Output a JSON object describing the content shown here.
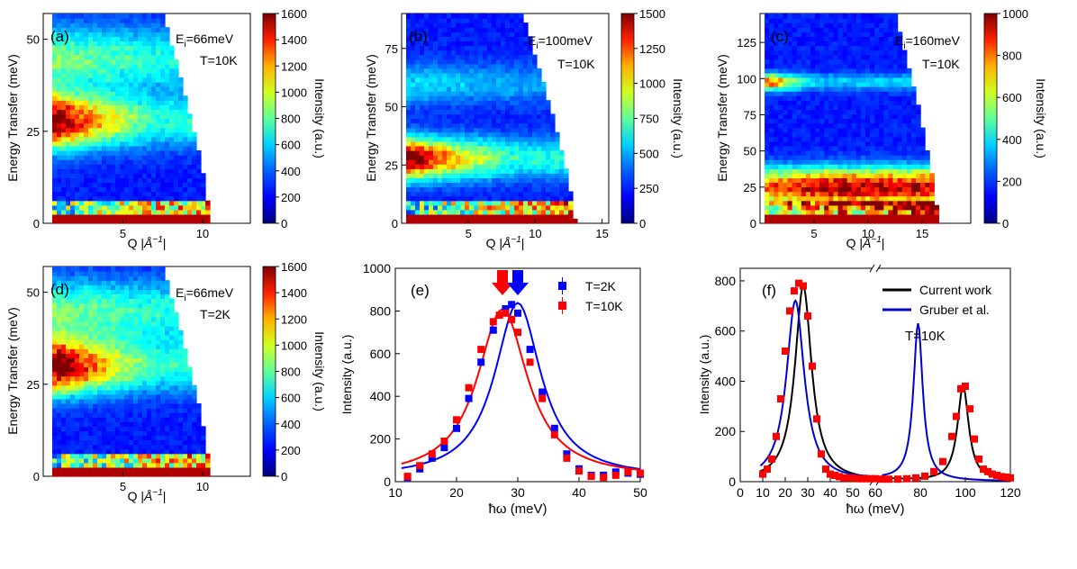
{
  "colors": {
    "colormap": [
      "#00007f",
      "#0000ff",
      "#0080ff",
      "#00ffff",
      "#80ff80",
      "#ffff00",
      "#ff8000",
      "#ff0000",
      "#7f0000"
    ],
    "series_blue": "#0000ff",
    "series_red": "#ff0000",
    "current_work_line": "#000000",
    "gruber_line": "#0000cc"
  },
  "panels": [
    {
      "id": "a",
      "label": "(a)",
      "type": "heatmap",
      "ei_prefix": "E",
      "ei_sub": "i",
      "ei_value": "=66meV",
      "temp": "T=10K",
      "xlabel_prefix": "Q |",
      "xlabel_unit": "Å",
      "xlabel_exp": "−1",
      "xlabel_suffix": "|",
      "ylabel": "Energy Transfer (meV)",
      "xlim": [
        0,
        13
      ],
      "xticks": [
        5,
        10
      ],
      "ylim": [
        0,
        57
      ],
      "yticks": [
        0,
        25,
        50
      ],
      "colorbar": {
        "label": "Intensity (a.u.)",
        "max": 1600,
        "ticks": [
          0,
          200,
          400,
          600,
          800,
          1000,
          1200,
          1400,
          1600
        ]
      },
      "coverage": {
        "q_min": 0.5,
        "q_max_low": 10.5,
        "q_max_high": 7.5
      },
      "bands": [
        {
          "e": 28,
          "w": 5,
          "i": 0.78,
          "q_decay": 0.2
        },
        {
          "e": 45,
          "w": 6,
          "i": 0.35,
          "q_decay": 0.05
        }
      ]
    },
    {
      "id": "b",
      "label": "(b)",
      "type": "heatmap",
      "ei_prefix": "E",
      "ei_sub": "i",
      "ei_value": "=100meV",
      "temp": "T=10K",
      "xlabel_prefix": "Q |",
      "xlabel_unit": "Å",
      "xlabel_exp": "−1",
      "xlabel_suffix": "|",
      "ylabel": "Energy Transfer (meV)",
      "xlim": [
        0,
        15.5
      ],
      "xticks": [
        5,
        10,
        15
      ],
      "ylim": [
        0,
        90
      ],
      "yticks": [
        0,
        25,
        50,
        75
      ],
      "colorbar": {
        "label": "Intensity (a.u.)",
        "max": 1500,
        "ticks": [
          0,
          250,
          500,
          750,
          1000,
          1250,
          1500
        ]
      },
      "coverage": {
        "q_min": 0.5,
        "q_max_low": 13,
        "q_max_high": 9
      },
      "bands": [
        {
          "e": 28,
          "w": 6,
          "i": 0.78,
          "q_decay": 0.15
        },
        {
          "e": 60,
          "w": 6,
          "i": 0.2,
          "q_decay": 0.05
        }
      ]
    },
    {
      "id": "c",
      "label": "(c)",
      "type": "heatmap",
      "ei_prefix": "E",
      "ei_sub": "i",
      "ei_value": "=160meV",
      "temp": "T=10K",
      "xlabel_prefix": "Q |",
      "xlabel_unit": "Å",
      "xlabel_exp": "−1",
      "xlabel_suffix": "|",
      "ylabel": "Energy Transfer (meV)",
      "xlim": [
        0,
        19.5
      ],
      "xticks": [
        5,
        10,
        15
      ],
      "ylim": [
        0,
        145
      ],
      "yticks": [
        0,
        25,
        50,
        75,
        100,
        125
      ],
      "colorbar": {
        "label": "Intensity (a.u.)",
        "max": 1000,
        "ticks": [
          0,
          200,
          400,
          600,
          800,
          1000
        ]
      },
      "coverage": {
        "q_min": 0.5,
        "q_max_low": 16.5,
        "q_max_high": 12.5
      },
      "bands": [
        {
          "e": 25,
          "w": 9,
          "i": 0.7,
          "q_decay": -0.05
        },
        {
          "e": 98,
          "w": 4,
          "i": 0.55,
          "q_decay": 0.3
        }
      ]
    },
    {
      "id": "d",
      "label": "(d)",
      "type": "heatmap",
      "ei_prefix": "E",
      "ei_sub": "i",
      "ei_value": "=66meV",
      "temp": "T=2K",
      "xlabel_prefix": "Q |",
      "xlabel_unit": "Å",
      "xlabel_exp": "−1",
      "xlabel_suffix": "|",
      "ylabel": "Energy Transfer (meV)",
      "xlim": [
        0,
        13
      ],
      "xticks": [
        5,
        10
      ],
      "ylim": [
        0,
        57
      ],
      "yticks": [
        0,
        25,
        50
      ],
      "colorbar": {
        "label": "Intensity (a.u.)",
        "max": 1600,
        "ticks": [
          0,
          200,
          400,
          600,
          800,
          1000,
          1200,
          1400,
          1600
        ]
      },
      "coverage": {
        "q_min": 0.5,
        "q_max_low": 10.5,
        "q_max_high": 7.5
      },
      "bands": [
        {
          "e": 30,
          "w": 5,
          "i": 0.8,
          "q_decay": 0.2
        },
        {
          "e": 45,
          "w": 6,
          "i": 0.35,
          "q_decay": 0.05
        }
      ]
    }
  ],
  "chart_data": [
    {
      "type": "scatter",
      "panel": "(e)",
      "xlabel": "ħω (meV)",
      "ylabel": "Intensity (a.u.)",
      "xlim": [
        10,
        50
      ],
      "ylim": [
        0,
        1000
      ],
      "xticks": [
        10,
        20,
        30,
        40,
        50
      ],
      "yticks": [
        0,
        200,
        400,
        600,
        800,
        1000
      ],
      "legend": "top-right",
      "series": [
        {
          "name": "T=2K",
          "color": "#0000ff",
          "x": [
            12,
            14,
            16,
            18,
            20,
            22,
            24,
            26,
            28,
            29,
            30,
            32,
            34,
            36,
            38,
            40,
            42,
            44,
            46,
            48,
            50
          ],
          "y": [
            20,
            60,
            110,
            160,
            250,
            390,
            560,
            710,
            810,
            830,
            790,
            620,
            420,
            250,
            130,
            60,
            30,
            30,
            45,
            40,
            35
          ],
          "fit_peak": 30.0,
          "fit_amp": 820,
          "fit_width": 4.6
        },
        {
          "name": "T=10K",
          "color": "#ff0000",
          "x": [
            12,
            14,
            16,
            18,
            20,
            22,
            24,
            26,
            27,
            28,
            29,
            30,
            32,
            34,
            36,
            38,
            40,
            42,
            44,
            46,
            48,
            50
          ],
          "y": [
            25,
            75,
            130,
            190,
            290,
            440,
            620,
            750,
            780,
            790,
            760,
            700,
            560,
            390,
            220,
            110,
            50,
            25,
            20,
            30,
            45,
            40
          ],
          "fit_peak": 27.5,
          "fit_amp": 790,
          "fit_width": 5.0
        }
      ],
      "annotations": [
        {
          "type": "arrow",
          "x": 27.5,
          "color": "#ff0000"
        },
        {
          "type": "arrow",
          "x": 30.0,
          "color": "#0000ff"
        }
      ]
    },
    {
      "type": "line",
      "panel": "(f)",
      "xlabel": "ħω (meV)",
      "ylabel": "Intensity (a.u.)",
      "xlim": [
        0,
        120
      ],
      "ylim": [
        0,
        850
      ],
      "xticks": [
        0,
        10,
        20,
        30,
        40,
        50,
        60,
        80,
        100,
        120
      ],
      "yticks": [
        0,
        200,
        400,
        600,
        800
      ],
      "broken_axis_between": [
        60,
        62
      ],
      "legend": "top-right",
      "annotation_text": "T=10K",
      "series": [
        {
          "name": "Current work",
          "color": "#000000",
          "kind": "line",
          "peaks": [
            {
              "x0": 28,
              "amp": 780,
              "w": 4.5
            },
            {
              "x0": 99,
              "amp": 380,
              "w": 3.0
            }
          ]
        },
        {
          "name": "Gruber et al.",
          "color": "#0000cc",
          "kind": "line",
          "peaks": [
            {
              "x0": 24.5,
              "amp": 720,
              "w": 4.8
            },
            {
              "x0": 79,
              "amp": 625,
              "w": 2.5
            }
          ]
        },
        {
          "name": "T=10K data",
          "color": "#ff0000",
          "kind": "markers",
          "x": [
            10,
            12,
            14,
            16,
            18,
            20,
            22,
            24,
            26,
            28,
            30,
            32,
            34,
            36,
            38,
            40,
            42,
            44,
            46,
            48,
            50,
            52,
            54,
            56,
            58,
            60,
            63,
            66,
            70,
            74,
            78,
            82,
            86,
            90,
            94,
            96,
            98,
            100,
            102,
            104,
            106,
            108,
            110,
            112,
            114,
            116,
            118,
            120
          ],
          "y": [
            30,
            50,
            90,
            180,
            330,
            520,
            680,
            760,
            790,
            780,
            660,
            460,
            250,
            110,
            50,
            30,
            25,
            20,
            15,
            15,
            15,
            12,
            12,
            12,
            12,
            12,
            10,
            10,
            10,
            12,
            15,
            22,
            40,
            80,
            180,
            260,
            370,
            380,
            290,
            170,
            90,
            50,
            40,
            30,
            25,
            20,
            18,
            15
          ]
        }
      ]
    }
  ]
}
